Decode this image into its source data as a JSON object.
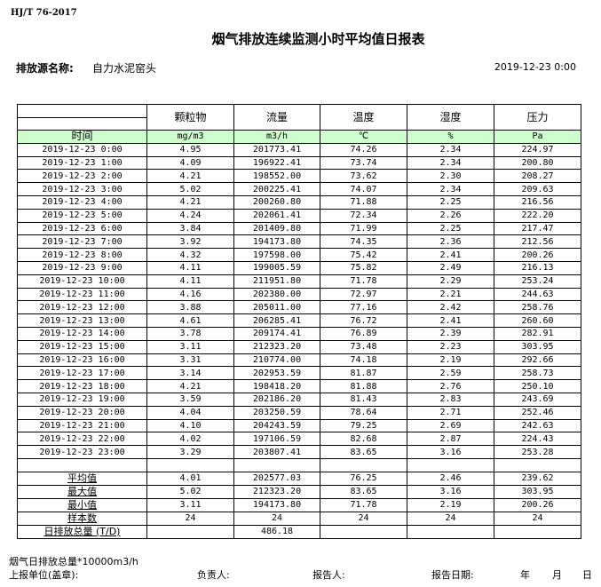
{
  "standard": "HJ/T  76-2017",
  "title": "烟气排放连续监测小时平均值日报表",
  "source_label": "排放源名称:",
  "source_value": "自力水泥窑头",
  "report_datetime": "2019-12-23 0:00",
  "columns": [
    {
      "name": "颗粒物",
      "unit": "mg/m3"
    },
    {
      "name": "流量",
      "unit": "m3/h"
    },
    {
      "name": "温度",
      "unit": "℃"
    },
    {
      "name": "湿度",
      "unit": "%"
    },
    {
      "name": "压力",
      "unit": "Pa"
    }
  ],
  "time_label": "时间",
  "header_fill": "#ccffcc",
  "rows": [
    [
      "2019-12-23 0:00",
      "4.95",
      "201773.41",
      "74.26",
      "2.34",
      "224.97"
    ],
    [
      "2019-12-23 1:00",
      "4.09",
      "196922.41",
      "73.74",
      "2.34",
      "200.80"
    ],
    [
      "2019-12-23 2:00",
      "4.21",
      "198552.00",
      "73.62",
      "2.30",
      "208.27"
    ],
    [
      "2019-12-23 3:00",
      "5.02",
      "200225.41",
      "74.07",
      "2.34",
      "209.63"
    ],
    [
      "2019-12-23 4:00",
      "4.21",
      "200260.80",
      "71.88",
      "2.25",
      "216.56"
    ],
    [
      "2019-12-23 5:00",
      "4.24",
      "202061.41",
      "72.34",
      "2.26",
      "222.20"
    ],
    [
      "2019-12-23 6:00",
      "3.84",
      "201409.80",
      "71.99",
      "2.25",
      "217.47"
    ],
    [
      "2019-12-23 7:00",
      "3.92",
      "194173.80",
      "74.35",
      "2.36",
      "212.56"
    ],
    [
      "2019-12-23 8:00",
      "4.32",
      "197598.00",
      "75.42",
      "2.41",
      "200.26"
    ],
    [
      "2019-12-23 9:00",
      "4.11",
      "199005.59",
      "75.82",
      "2.49",
      "216.13"
    ],
    [
      "2019-12-23 10:00",
      "4.11",
      "211951.80",
      "71.78",
      "2.29",
      "253.24"
    ],
    [
      "2019-12-23 11:00",
      "4.16",
      "202380.00",
      "72.97",
      "2.21",
      "244.63"
    ],
    [
      "2019-12-23 12:00",
      "3.88",
      "205011.00",
      "77.16",
      "2.42",
      "258.76"
    ],
    [
      "2019-12-23 13:00",
      "4.61",
      "206285.41",
      "76.72",
      "2.41",
      "260.60"
    ],
    [
      "2019-12-23 14:00",
      "3.78",
      "209174.41",
      "76.89",
      "2.39",
      "282.91"
    ],
    [
      "2019-12-23 15:00",
      "3.11",
      "212323.20",
      "73.48",
      "2.23",
      "303.95"
    ],
    [
      "2019-12-23 16:00",
      "3.31",
      "210774.00",
      "74.18",
      "2.19",
      "292.66"
    ],
    [
      "2019-12-23 17:00",
      "3.14",
      "202953.59",
      "81.87",
      "2.59",
      "258.73"
    ],
    [
      "2019-12-23 18:00",
      "4.21",
      "198418.20",
      "81.88",
      "2.76",
      "250.10"
    ],
    [
      "2019-12-23 19:00",
      "3.59",
      "202186.20",
      "81.43",
      "2.83",
      "243.69"
    ],
    [
      "2019-12-23 20:00",
      "4.04",
      "203250.59",
      "78.64",
      "2.71",
      "252.46"
    ],
    [
      "2019-12-23 21:00",
      "4.10",
      "204243.59",
      "79.25",
      "2.69",
      "242.63"
    ],
    [
      "2019-12-23 22:00",
      "4.02",
      "197106.59",
      "82.68",
      "2.87",
      "224.43"
    ],
    [
      "2019-12-23 23:00",
      "3.29",
      "203807.41",
      "83.65",
      "3.16",
      "253.28"
    ]
  ],
  "summary": [
    [
      "平均值",
      "4.01",
      "202577.03",
      "76.25",
      "2.46",
      "239.62"
    ],
    [
      "最大值",
      "5.02",
      "212323.20",
      "83.65",
      "3.16",
      "303.95"
    ],
    [
      "最小值",
      "3.11",
      "194173.80",
      "71.78",
      "2.19",
      "200.26"
    ],
    [
      "样本数",
      "24",
      "24",
      "24",
      "24",
      "24"
    ],
    [
      "日排放总量 (T/D)",
      "",
      "486.18",
      "",
      "",
      ""
    ]
  ],
  "footer": {
    "note": "烟气日排放总量*10000m3/h",
    "unit_label": "上报单位(盖章):",
    "responsible": "负责人:",
    "reporter": "报告人:",
    "report_date": "报告日期:",
    "year": "年",
    "month": "月",
    "day": "日"
  }
}
